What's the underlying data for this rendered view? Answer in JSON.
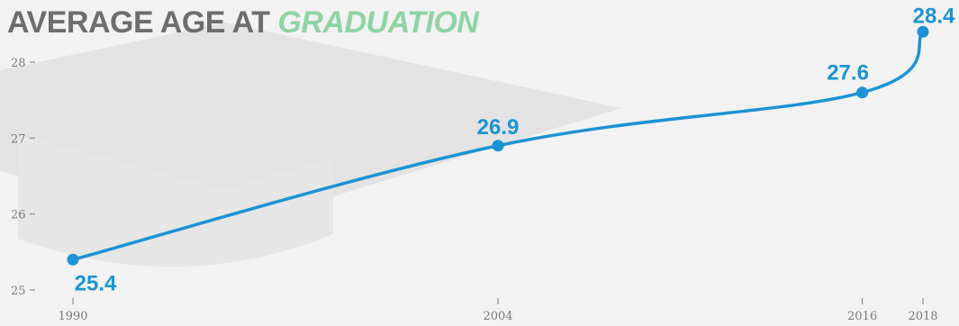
{
  "colors": {
    "background": "#f2f2f2",
    "title_main": "#6d6d6d",
    "title_accent": "#8fd3a6",
    "line": "#1c93d3",
    "axis_text": "#7a7a7a",
    "watermark": "#e3e3e3"
  },
  "chart_data": {
    "type": "line",
    "title": "AVERAGE AGE AT GRADUATION",
    "title_parts": {
      "main": "AVERAGE AGE AT ",
      "accent": "GRADUATION"
    },
    "xlabel": "",
    "ylabel": "",
    "x": [
      1990,
      2004,
      2016,
      2018
    ],
    "series": [
      {
        "values": [
          25.4,
          26.9,
          27.6,
          28.4
        ],
        "data_labels": [
          "25.4",
          "26.9",
          "27.6",
          "28.4"
        ]
      }
    ],
    "xlim": [
      1990,
      2018
    ],
    "ylim": [
      25,
      28
    ],
    "yticks": [
      25,
      26,
      27,
      28
    ],
    "ytick_labels": [
      "25",
      "26",
      "27",
      "28"
    ],
    "xticks": [
      1990,
      2004,
      2016,
      2018
    ],
    "xtick_labels": [
      "1990",
      "2004",
      "2016",
      "2018"
    ],
    "grid": false,
    "legend": "none",
    "watermark_icon": "graduation-cap-icon"
  }
}
